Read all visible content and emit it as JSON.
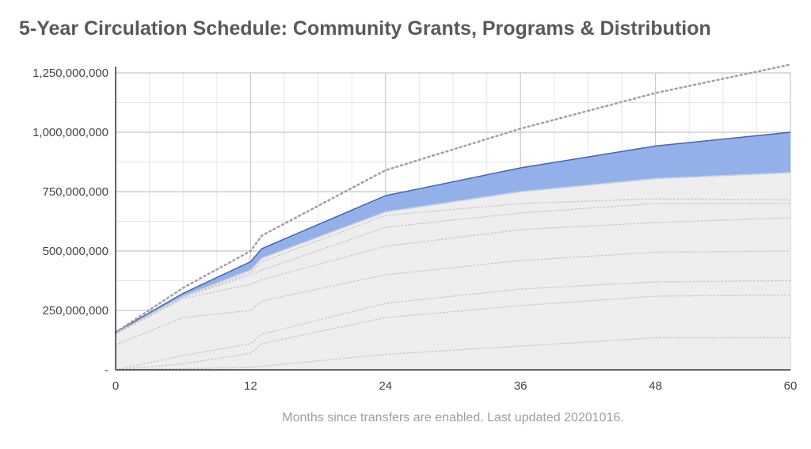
{
  "chart_data": {
    "type": "area",
    "title": "5-Year Circulation Schedule: Community Grants, Programs & Distribution",
    "xlabel": "Months since transfers are enabled. Last updated 20201016.",
    "ylabel": "",
    "xlim": [
      0,
      60
    ],
    "ylim": [
      0,
      1250000000
    ],
    "x_ticks": [
      0,
      12,
      24,
      36,
      48,
      60
    ],
    "x_tick_labels": [
      "0",
      "12",
      "24",
      "36",
      "48",
      "60"
    ],
    "y_ticks": [
      0,
      250000000,
      500000000,
      750000000,
      1000000000,
      1250000000
    ],
    "y_tick_labels": [
      "-",
      "250,000,000",
      "500,000,000",
      "750,000,000",
      "1,000,000,000",
      "1,250,000,000"
    ],
    "grid": true,
    "legend": "none",
    "x": [
      0,
      6,
      12,
      13,
      24,
      36,
      48,
      60
    ],
    "series": [
      {
        "values": [
          0,
          5000000,
          10000000,
          15000000,
          65000000,
          100000000,
          135000000,
          135000000
        ],
        "fill": false,
        "style": "dotted",
        "color": "#c8c8c8"
      },
      {
        "values": [
          0,
          25000000,
          70000000,
          110000000,
          220000000,
          270000000,
          310000000,
          315000000
        ],
        "fill": false,
        "style": "dotted",
        "color": "#c8c8c8"
      },
      {
        "values": [
          0,
          60000000,
          110000000,
          150000000,
          280000000,
          340000000,
          370000000,
          375000000
        ],
        "fill": false,
        "style": "dotted",
        "color": "#c8c8c8"
      },
      {
        "values": [
          105000000,
          220000000,
          250000000,
          290000000,
          400000000,
          460000000,
          495000000,
          500000000
        ],
        "fill": false,
        "style": "dotted",
        "color": "#c8c8c8"
      },
      {
        "values": [
          150000000,
          300000000,
          360000000,
          380000000,
          520000000,
          590000000,
          620000000,
          640000000
        ],
        "fill": false,
        "style": "dotted",
        "color": "#c8c8c8"
      },
      {
        "values": [
          155000000,
          305000000,
          400000000,
          420000000,
          600000000,
          660000000,
          700000000,
          700000000
        ],
        "fill": false,
        "style": "dotted",
        "color": "#c8c8c8"
      },
      {
        "values": [
          155000000,
          305000000,
          410000000,
          455000000,
          650000000,
          700000000,
          720000000,
          715000000
        ],
        "fill": false,
        "style": "dotted",
        "color": "#c8c8c8"
      },
      {
        "values": [
          155000000,
          310000000,
          420000000,
          470000000,
          665000000,
          750000000,
          805000000,
          830000000
        ],
        "fill": true,
        "style": "solid",
        "color": "#eeeeee",
        "line_color": "#cccccc"
      },
      {
        "values": [
          158000000,
          322000000,
          455000000,
          510000000,
          733000000,
          850000000,
          942000000,
          1000000000
        ],
        "fill": true,
        "style": "solid",
        "color": "#93b1e8",
        "line_color": "#3e64c2"
      },
      {
        "values": [
          158000000,
          345000000,
          500000000,
          565000000,
          840000000,
          1015000000,
          1165000000,
          1285000000
        ],
        "fill": false,
        "style": "dotted",
        "color": "#a0a0a0"
      }
    ]
  }
}
